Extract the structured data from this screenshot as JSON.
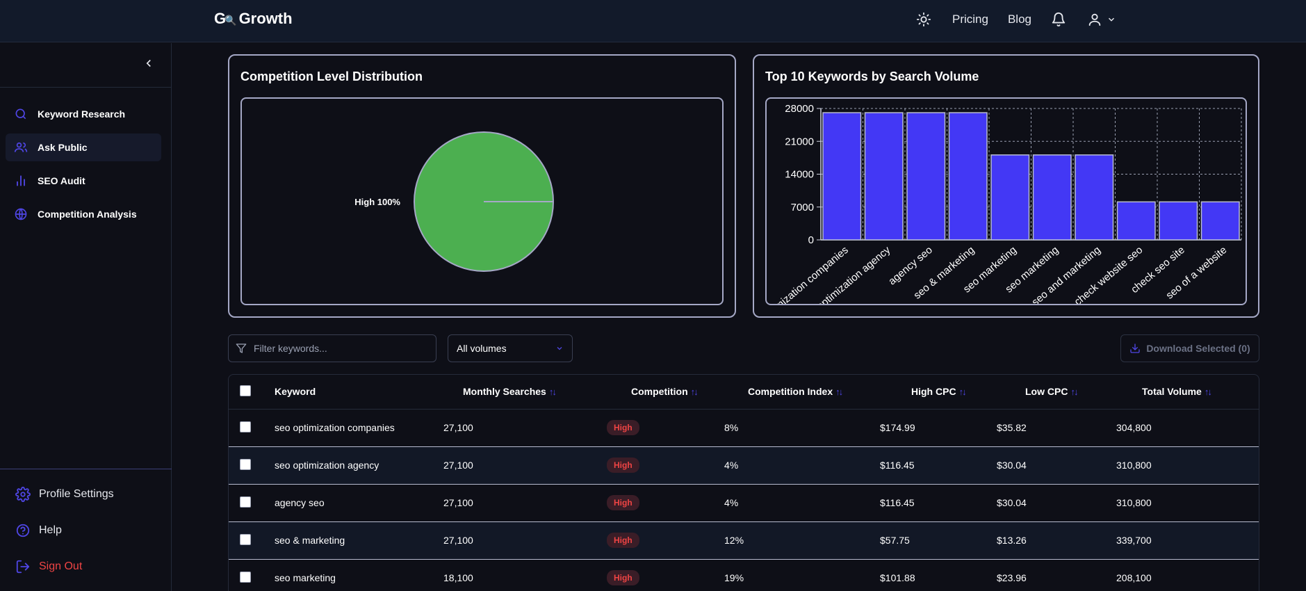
{
  "header": {
    "logo_mark": "G",
    "logo_text": "Growth",
    "nav": [
      "Pricing",
      "Blog"
    ]
  },
  "sidebar": {
    "items": [
      {
        "label": "Keyword Research",
        "icon": "search-icon"
      },
      {
        "label": "Ask Public",
        "icon": "users-icon"
      },
      {
        "label": "SEO Audit",
        "icon": "bar-chart-icon"
      },
      {
        "label": "Competition Analysis",
        "icon": "globe-icon"
      }
    ],
    "bottom": [
      {
        "label": "Profile Settings",
        "icon": "gear-icon"
      },
      {
        "label": "Help",
        "icon": "help-icon"
      },
      {
        "label": "Sign Out",
        "icon": "sign-out-icon"
      }
    ]
  },
  "pie_card": {
    "title": "Competition Level Distribution"
  },
  "bar_card": {
    "title": "Top 10 Keywords by Search Volume"
  },
  "chart_data": [
    {
      "type": "pie",
      "title": "Competition Level Distribution",
      "slices": [
        {
          "label": "High 100%",
          "value": 100,
          "color": "#4caf50"
        }
      ]
    },
    {
      "type": "bar",
      "title": "Top 10 Keywords by Search Volume",
      "categories": [
        "seo optimization companies",
        "seo optimization agency",
        "agency seo",
        "seo & marketing",
        "seo marketing",
        "seo marketing",
        "seo and marketing",
        "check website seo",
        "check seo site",
        "seo of a website"
      ],
      "values": [
        27100,
        27100,
        27100,
        27100,
        18100,
        18100,
        18100,
        8100,
        8100,
        8100
      ],
      "ylim": [
        0,
        28000
      ],
      "yticks": [
        "0",
        "7000",
        "14000",
        "21000",
        "28000"
      ],
      "bar_color": "#4338f5",
      "grid": true
    }
  ],
  "controls": {
    "filter_placeholder": "Filter keywords...",
    "volume_select": "All volumes",
    "download_label": "Download Selected (0)"
  },
  "table": {
    "headers": [
      "Keyword",
      "Monthly Searches",
      "Competition",
      "Competition Index",
      "High CPC",
      "Low CPC",
      "Total Volume"
    ],
    "rows": [
      {
        "keyword": "seo optimization companies",
        "monthly": "27,100",
        "competition": "High",
        "index": "8%",
        "high_cpc": "$174.99",
        "low_cpc": "$35.82",
        "total": "304,800"
      },
      {
        "keyword": "seo optimization agency",
        "monthly": "27,100",
        "competition": "High",
        "index": "4%",
        "high_cpc": "$116.45",
        "low_cpc": "$30.04",
        "total": "310,800"
      },
      {
        "keyword": "agency seo",
        "monthly": "27,100",
        "competition": "High",
        "index": "4%",
        "high_cpc": "$116.45",
        "low_cpc": "$30.04",
        "total": "310,800"
      },
      {
        "keyword": "seo & marketing",
        "monthly": "27,100",
        "competition": "High",
        "index": "12%",
        "high_cpc": "$57.75",
        "low_cpc": "$13.26",
        "total": "339,700"
      },
      {
        "keyword": "seo marketing",
        "monthly": "18,100",
        "competition": "High",
        "index": "19%",
        "high_cpc": "$101.88",
        "low_cpc": "$23.96",
        "total": "208,100"
      }
    ]
  }
}
